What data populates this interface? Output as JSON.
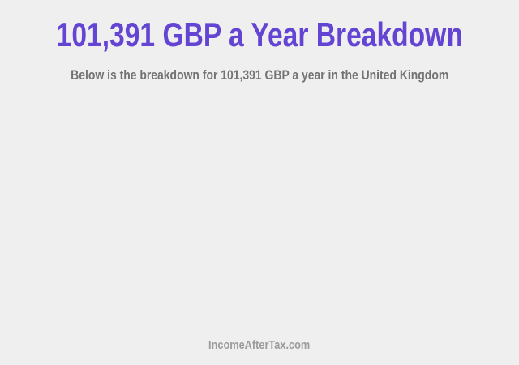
{
  "header": {
    "title": "101,391 GBP a Year Breakdown",
    "subtitle": "Below is the breakdown for 101,391 GBP a year in the United Kingdom"
  },
  "body": {
    "content": ""
  },
  "footer": {
    "site_name": "IncomeAfterTax.com"
  },
  "colors": {
    "background": "#efefef",
    "title": "#6344d3",
    "subtitle": "#737373",
    "footer_text": "#9b9b9b"
  }
}
